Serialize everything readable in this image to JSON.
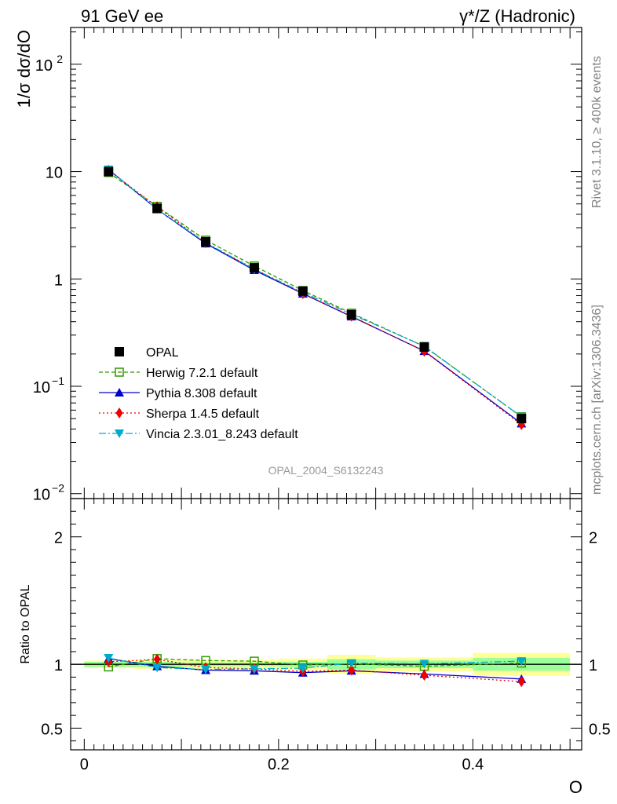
{
  "header": {
    "left_label": "91 GeV ee",
    "right_label": "γ*/Z (Hadronic)"
  },
  "side": {
    "rivet": "Rivet 3.1.10, ≥ 400k events",
    "mcplots": "mcplots.cern.ch [arXiv:1306.3436]"
  },
  "analysis_label": "OPAL_2004_S6132243",
  "colors": {
    "data": "#000000",
    "herwig": "#339900",
    "pythia": "#0000cc",
    "sherpa": "#ee0000",
    "vincia": "#00aacc",
    "band_inner": "#99ff99",
    "band_outer": "#ffff99"
  },
  "chart_data": [
    {
      "type": "line",
      "panel": "main",
      "ylabel": "1/σ dσ/dO",
      "xlabel": "O",
      "yscale": "log",
      "ylim": [
        0.009,
        220
      ],
      "xlim": [
        -0.014,
        0.512
      ],
      "y_tick_labels": [
        {
          "value": 100,
          "base": "10",
          "exp": "2"
        },
        {
          "value": 10,
          "base": "10",
          "exp": ""
        },
        {
          "value": 1,
          "base": "1",
          "exp": ""
        },
        {
          "value": 0.1,
          "base": "10",
          "exp": "−1"
        },
        {
          "value": 0.01,
          "base": "10",
          "exp": "−2"
        }
      ],
      "legend_position": "center-left",
      "x": [
        0.025,
        0.075,
        0.125,
        0.175,
        0.225,
        0.275,
        0.35,
        0.45
      ],
      "x_bins": [
        [
          0.0,
          0.05
        ],
        [
          0.05,
          0.1
        ],
        [
          0.1,
          0.15
        ],
        [
          0.15,
          0.2
        ],
        [
          0.2,
          0.25
        ],
        [
          0.25,
          0.3
        ],
        [
          0.3,
          0.4
        ],
        [
          0.4,
          0.5
        ]
      ],
      "series": [
        {
          "key": "data",
          "name": "OPAL",
          "values": [
            10.0,
            4.55,
            2.22,
            1.27,
            0.77,
            0.465,
            0.232,
            0.05
          ]
        },
        {
          "key": "herwig",
          "name": "Herwig 7.2.1 default",
          "values": [
            9.8,
            4.75,
            2.3,
            1.32,
            0.78,
            0.48,
            0.235,
            0.052
          ]
        },
        {
          "key": "pythia",
          "name": "Pythia 8.308 default",
          "values": [
            10.45,
            4.45,
            2.14,
            1.21,
            0.73,
            0.447,
            0.213,
            0.045
          ]
        },
        {
          "key": "sherpa",
          "name": "Sherpa 1.4.5 default",
          "values": [
            10.25,
            4.7,
            2.17,
            1.24,
            0.73,
            0.45,
            0.212,
            0.044
          ]
        },
        {
          "key": "vincia",
          "name": "Vincia 2.3.01_8.243 default",
          "values": [
            10.45,
            4.45,
            2.18,
            1.23,
            0.75,
            0.47,
            0.236,
            0.052
          ]
        }
      ]
    },
    {
      "type": "line",
      "panel": "ratio",
      "ylabel": "Ratio to OPAL",
      "xlabel": "O",
      "ylim": [
        0.33,
        2.3
      ],
      "y_ticks": [
        0.5,
        1,
        2
      ],
      "y_tick_labels": [
        "0.5",
        "1",
        "2"
      ],
      "x_ticks": [
        0,
        0.2,
        0.4
      ],
      "x_tick_labels": [
        "0",
        "0.2",
        "0.4"
      ],
      "x": [
        0.025,
        0.075,
        0.125,
        0.175,
        0.225,
        0.275,
        0.35,
        0.45
      ],
      "band_inner": [
        [
          0.98,
          1.02
        ],
        [
          0.98,
          1.02
        ],
        [
          0.985,
          1.015
        ],
        [
          0.985,
          1.015
        ],
        [
          0.98,
          1.02
        ],
        [
          0.96,
          1.04
        ],
        [
          0.97,
          1.03
        ],
        [
          0.95,
          1.05
        ]
      ],
      "band_outer": [
        [
          0.97,
          1.03
        ],
        [
          0.965,
          1.035
        ],
        [
          0.965,
          1.035
        ],
        [
          0.965,
          1.035
        ],
        [
          0.955,
          1.045
        ],
        [
          0.925,
          1.075
        ],
        [
          0.945,
          1.055
        ],
        [
          0.91,
          1.09
        ]
      ],
      "series": [
        {
          "key": "herwig",
          "name": "Herwig 7.2.1 default",
          "values": [
            0.98,
            1.045,
            1.03,
            1.025,
            0.995,
            1.005,
            0.985,
            1.01
          ]
        },
        {
          "key": "pythia",
          "name": "Pythia 8.308 default",
          "values": [
            1.045,
            0.985,
            0.955,
            0.95,
            0.935,
            0.95,
            0.925,
            0.885
          ]
        },
        {
          "key": "sherpa",
          "name": "Sherpa 1.4.5 default",
          "values": [
            1.02,
            1.04,
            0.975,
            0.965,
            0.945,
            0.955,
            0.915,
            0.865
          ]
        },
        {
          "key": "vincia",
          "name": "Vincia 2.3.01_8.243 default",
          "values": [
            1.05,
            0.975,
            0.96,
            0.965,
            0.97,
            1.01,
            1.005,
            1.025
          ]
        }
      ]
    }
  ]
}
